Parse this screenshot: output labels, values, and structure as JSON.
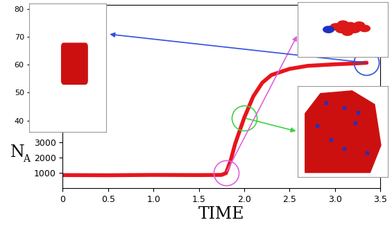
{
  "chart_data": [
    {
      "type": "line",
      "xlabel": "TIME",
      "ylabel": "NA",
      "x": [
        0,
        0.5,
        1.0,
        1.5,
        1.75,
        1.8,
        1.85,
        1.9,
        2.0,
        2.1,
        2.2,
        2.3,
        2.5,
        2.7,
        3.0,
        3.2,
        3.35
      ],
      "values": [
        870,
        860,
        880,
        870,
        880,
        1000,
        1800,
        2900,
        4600,
        6000,
        6900,
        7400,
        7800,
        8000,
        8100,
        8150,
        8200
      ],
      "color": "#e8141c",
      "xlim": [
        0,
        3.5
      ],
      "xticks": [
        0,
        0.5,
        1.0,
        1.5,
        2.0,
        2.5,
        3.0,
        3.5
      ],
      "ylim": [
        0,
        12000
      ],
      "yticks": [
        1000,
        2000,
        3000
      ]
    },
    {
      "type": "scatter",
      "ylim": [
        36,
        82
      ],
      "yticks": [
        40,
        50,
        60,
        70,
        80
      ],
      "tick_labels": "y"
    }
  ]
}
